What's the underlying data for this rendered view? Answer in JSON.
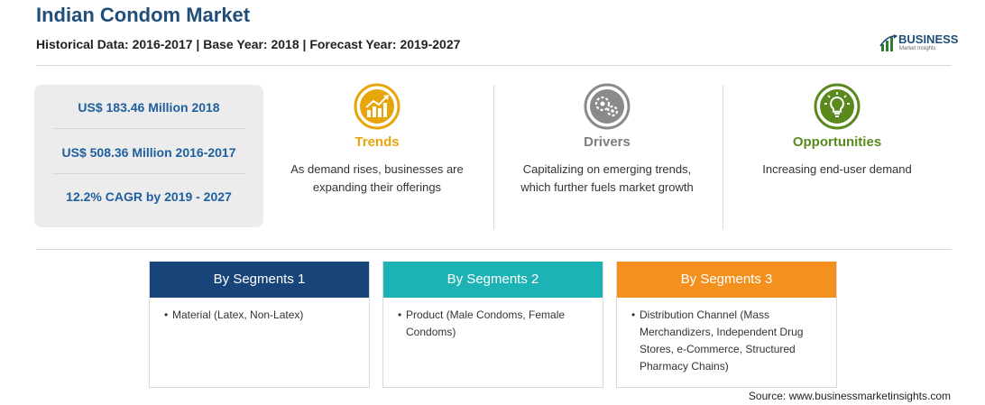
{
  "header": {
    "title": "Indian Condom Market",
    "subtitle": "Historical Data: 2016-2017 | Base Year: 2018 | Forecast Year: 2019-2027"
  },
  "logo": {
    "word": "BUSINESS",
    "sub": "Market Insights"
  },
  "stats": [
    "US$ 183.46 Million 2018",
    "US$ 508.36 Million 2016-2017",
    "12.2% CAGR by 2019 - 2027"
  ],
  "cards": [
    {
      "icon": "rising-chart-icon",
      "heading": "Trends",
      "text": "As demand rises, businesses are expanding their offerings",
      "color": "#e8a50a"
    },
    {
      "icon": "gears-icon",
      "heading": "Drivers",
      "text": "Capitalizing on emerging trends, which further fuels market growth",
      "color": "#7d7d7d"
    },
    {
      "icon": "lightbulb-icon",
      "heading": "Opportunities",
      "text": "Increasing end-user demand",
      "color": "#5a8a1e"
    }
  ],
  "segments": [
    {
      "title": "By Segments 1",
      "bullet": "•",
      "text": "Material (Latex, Non-Latex)",
      "color": "#17457a"
    },
    {
      "title": "By Segments 2",
      "bullet": "•",
      "text": "Product (Male Condoms, Female Condoms)",
      "color": "#1db3b5"
    },
    {
      "title": "By Segments 3",
      "bullet": "•",
      "text": "Distribution Channel (Mass Merchandizers, Independent Drug Stores, e-Commerce, Structured Pharmacy Chains)",
      "color": "#f4901d"
    }
  ],
  "source": "Source: www.businessmarketinsights.com"
}
